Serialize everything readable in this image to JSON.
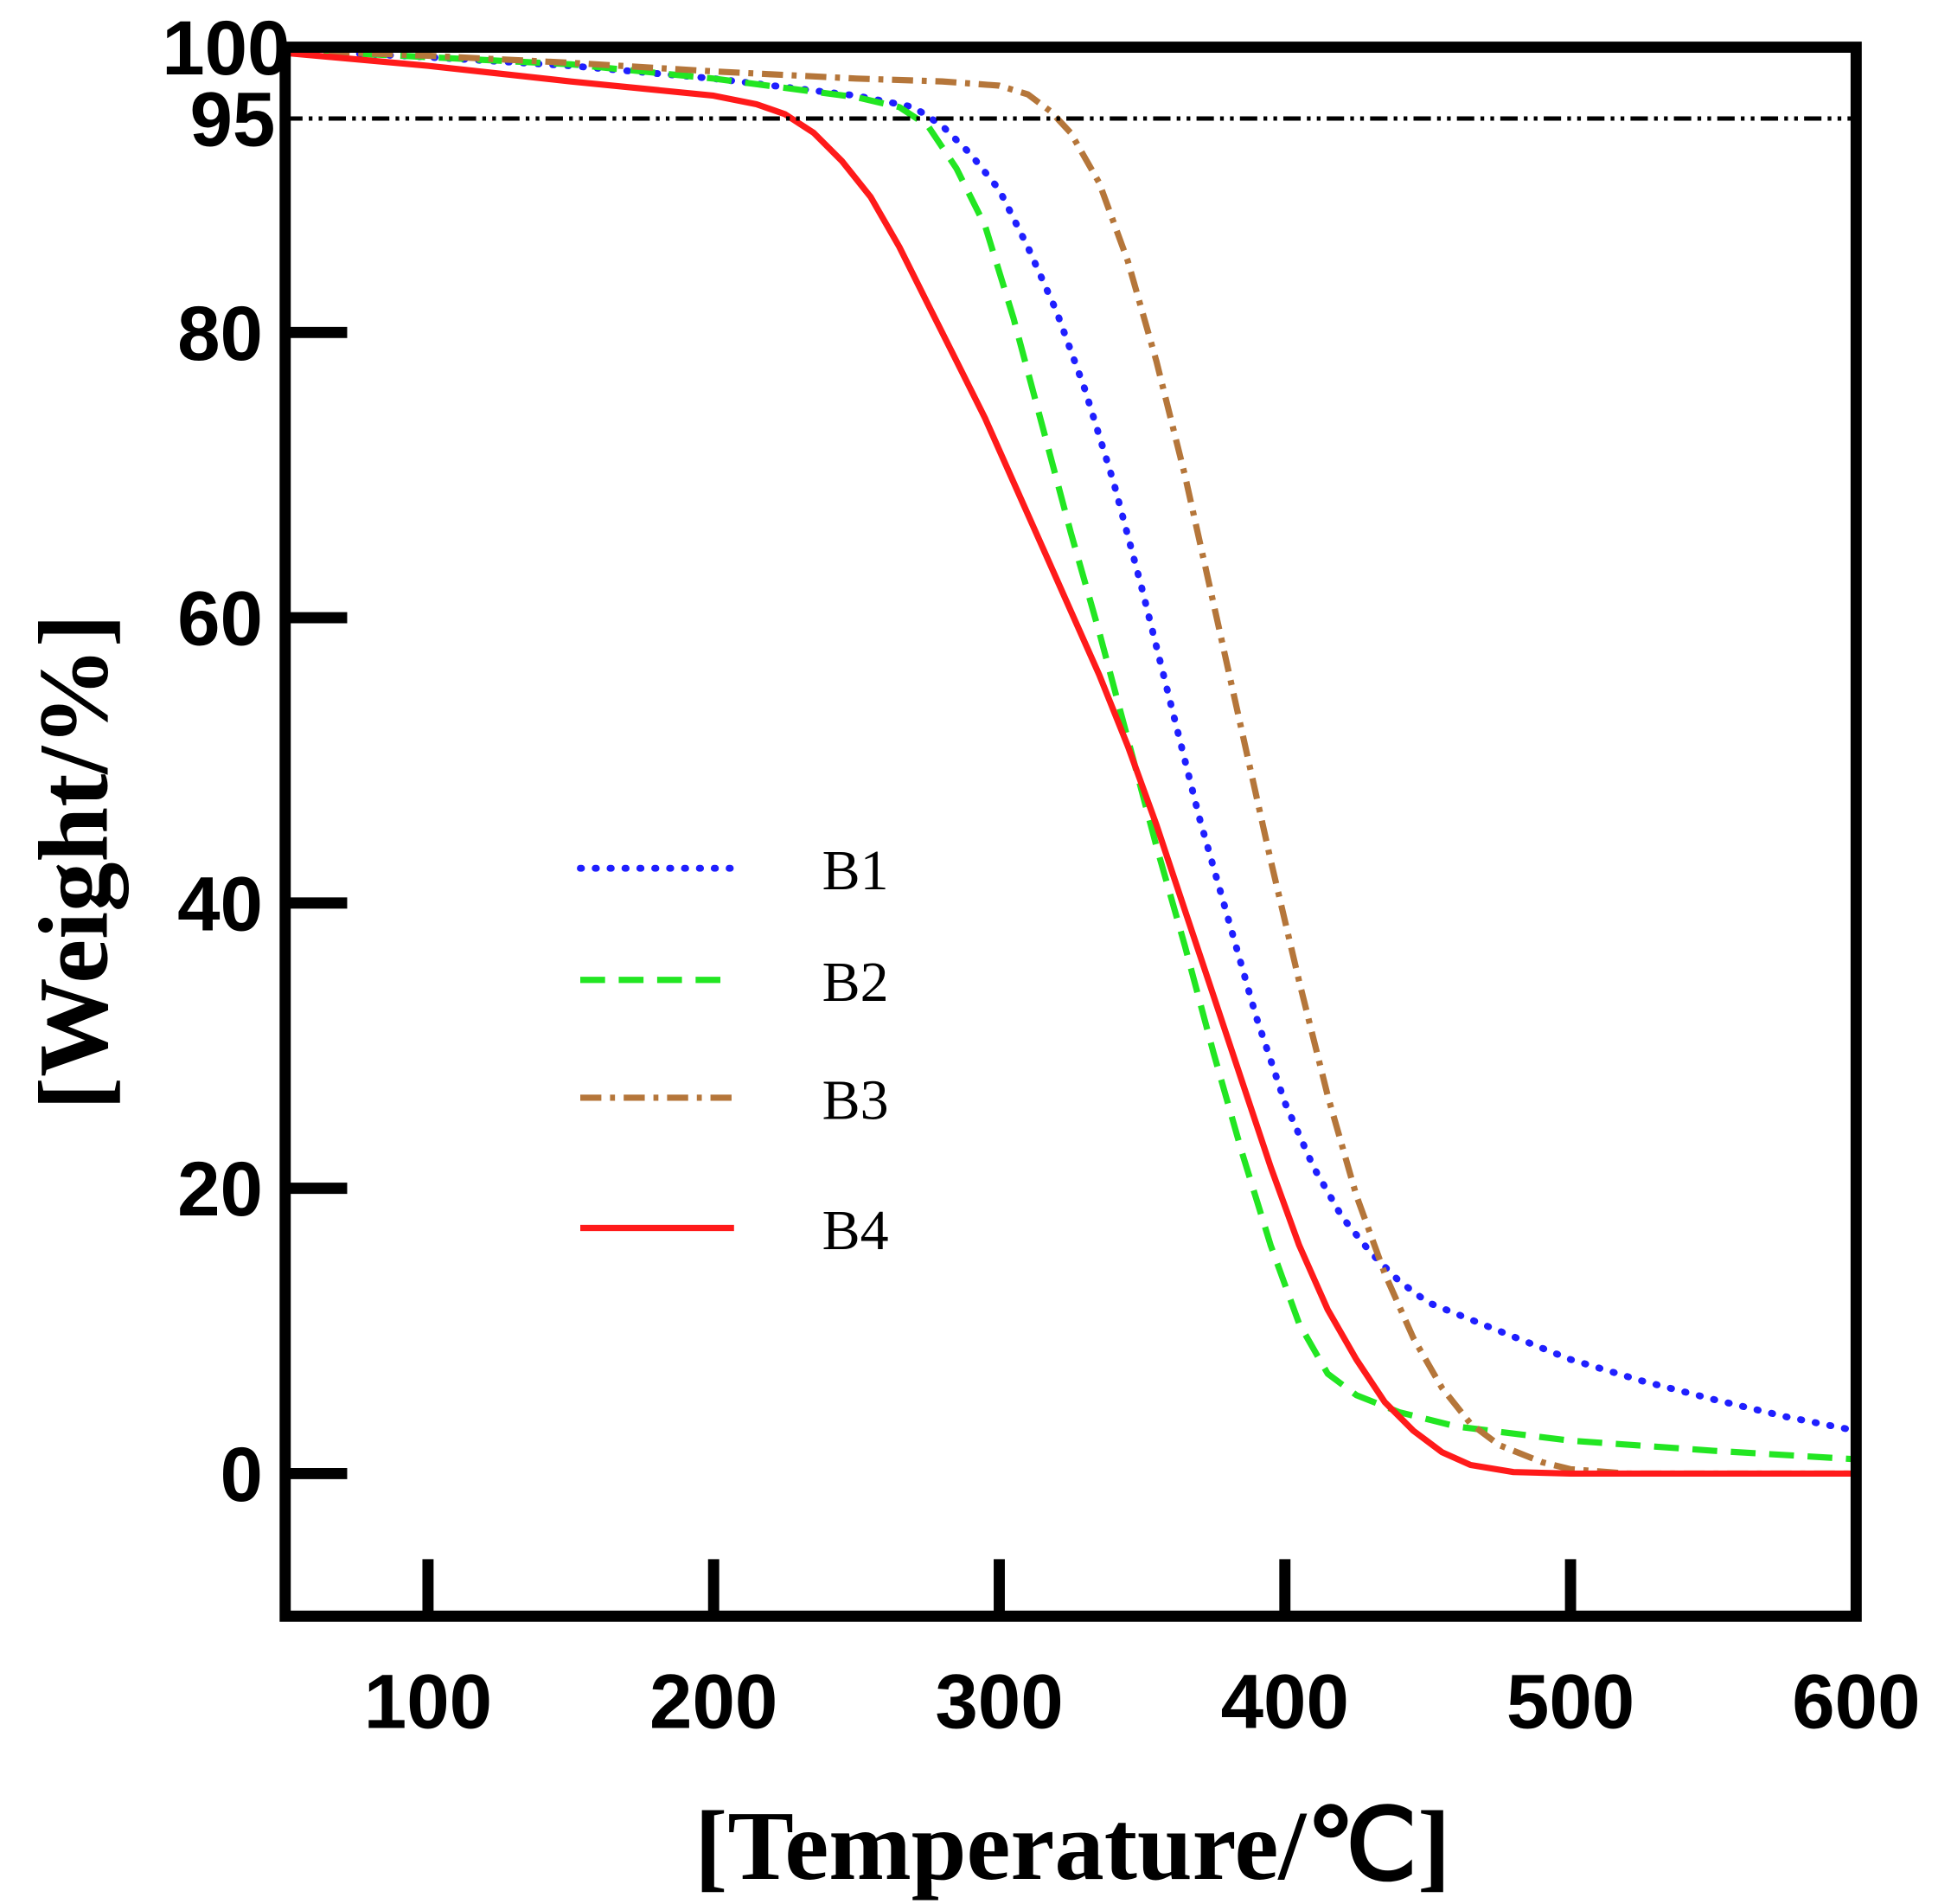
{
  "chart_data": {
    "type": "line",
    "xlabel": "[Temperature/℃]",
    "ylabel": "[Weight/%]",
    "xlim": [
      50,
      600
    ],
    "ylim": [
      -10,
      100
    ],
    "xticks": [
      100,
      200,
      300,
      400,
      500,
      600
    ],
    "yticks": [
      0,
      20,
      40,
      60,
      80,
      95,
      100
    ],
    "x_tick_marks": [
      100,
      200,
      300,
      400,
      500
    ],
    "y_tick_marks": [
      0,
      20,
      40,
      60,
      80
    ],
    "reference_line": {
      "y": 95,
      "color": "#000000"
    },
    "legend": {
      "position": "center-left"
    },
    "series": [
      {
        "name": "B1",
        "color": "#1f1fff",
        "points": [
          [
            50,
            99.8
          ],
          [
            100,
            99.3
          ],
          [
            150,
            98.7
          ],
          [
            200,
            97.8
          ],
          [
            250,
            96.6
          ],
          [
            270,
            95.8
          ],
          [
            280,
            94.5
          ],
          [
            290,
            92.5
          ],
          [
            300,
            90
          ],
          [
            310,
            86
          ],
          [
            320,
            81.5
          ],
          [
            330,
            76
          ],
          [
            340,
            69.5
          ],
          [
            350,
            62
          ],
          [
            360,
            54
          ],
          [
            370,
            46
          ],
          [
            380,
            39
          ],
          [
            390,
            32
          ],
          [
            400,
            26
          ],
          [
            410,
            21.5
          ],
          [
            420,
            18
          ],
          [
            430,
            15.5
          ],
          [
            440,
            13.5
          ],
          [
            450,
            12
          ],
          [
            475,
            10
          ],
          [
            500,
            8
          ],
          [
            525,
            6.5
          ],
          [
            550,
            5.2
          ],
          [
            575,
            4
          ],
          [
            600,
            3
          ]
        ]
      },
      {
        "name": "B2",
        "color": "#22e622",
        "points": [
          [
            50,
            99.8
          ],
          [
            100,
            99.3
          ],
          [
            150,
            98.8
          ],
          [
            200,
            97.8
          ],
          [
            250,
            96.5
          ],
          [
            265,
            95.8
          ],
          [
            275,
            94.5
          ],
          [
            285,
            91.5
          ],
          [
            295,
            87.5
          ],
          [
            305,
            81
          ],
          [
            315,
            73.5
          ],
          [
            325,
            66
          ],
          [
            335,
            59
          ],
          [
            345,
            51.5
          ],
          [
            355,
            44
          ],
          [
            365,
            37
          ],
          [
            375,
            29.5
          ],
          [
            385,
            22.5
          ],
          [
            395,
            16
          ],
          [
            405,
            10.5
          ],
          [
            415,
            7
          ],
          [
            425,
            5.5
          ],
          [
            440,
            4.3
          ],
          [
            460,
            3.3
          ],
          [
            500,
            2.3
          ],
          [
            550,
            1.6
          ],
          [
            600,
            1
          ]
        ]
      },
      {
        "name": "B3",
        "color": "#b5763a",
        "points": [
          [
            50,
            99.8
          ],
          [
            100,
            99.4
          ],
          [
            150,
            98.9
          ],
          [
            200,
            98.3
          ],
          [
            250,
            97.8
          ],
          [
            280,
            97.6
          ],
          [
            300,
            97.3
          ],
          [
            310,
            96.7
          ],
          [
            318,
            95.5
          ],
          [
            325,
            94
          ],
          [
            335,
            90.5
          ],
          [
            345,
            85
          ],
          [
            355,
            78
          ],
          [
            365,
            70
          ],
          [
            375,
            61
          ],
          [
            385,
            52
          ],
          [
            395,
            43
          ],
          [
            405,
            34.5
          ],
          [
            415,
            26.5
          ],
          [
            425,
            19.5
          ],
          [
            435,
            14
          ],
          [
            445,
            9.5
          ],
          [
            455,
            6
          ],
          [
            465,
            3.5
          ],
          [
            475,
            2
          ],
          [
            490,
            0.8
          ],
          [
            500,
            0.3
          ],
          [
            520,
            0
          ],
          [
            600,
            0
          ]
        ]
      },
      {
        "name": "B4",
        "color": "#ff1a1a",
        "points": [
          [
            50,
            99.6
          ],
          [
            100,
            98.7
          ],
          [
            150,
            97.6
          ],
          [
            200,
            96.6
          ],
          [
            215,
            96
          ],
          [
            225,
            95.3
          ],
          [
            235,
            94
          ],
          [
            245,
            92
          ],
          [
            255,
            89.5
          ],
          [
            265,
            86
          ],
          [
            275,
            82
          ],
          [
            285,
            78
          ],
          [
            295,
            74
          ],
          [
            305,
            69.5
          ],
          [
            315,
            65
          ],
          [
            325,
            60.5
          ],
          [
            335,
            56
          ],
          [
            345,
            51
          ],
          [
            355,
            45.5
          ],
          [
            365,
            39.5
          ],
          [
            375,
            33.5
          ],
          [
            385,
            27.5
          ],
          [
            395,
            21.5
          ],
          [
            405,
            16
          ],
          [
            415,
            11.5
          ],
          [
            425,
            8
          ],
          [
            435,
            5
          ],
          [
            445,
            3
          ],
          [
            455,
            1.5
          ],
          [
            465,
            0.6
          ],
          [
            480,
            0.1
          ],
          [
            500,
            0
          ],
          [
            600,
            0
          ]
        ]
      }
    ]
  }
}
